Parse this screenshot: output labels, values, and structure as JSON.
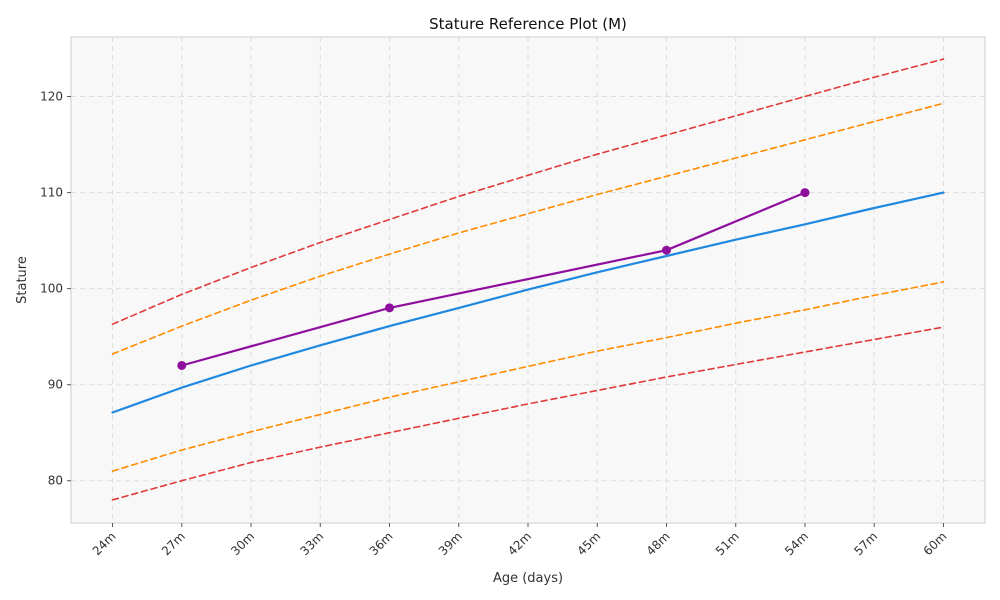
{
  "chart_data": {
    "type": "line",
    "title": "Stature Reference Plot (M)",
    "xlabel": "Age (days)",
    "ylabel": "Stature",
    "x_ticks": [
      24,
      27,
      30,
      33,
      36,
      39,
      42,
      45,
      48,
      51,
      54,
      57,
      60
    ],
    "x_tick_labels": [
      "24m",
      "27m",
      "30m",
      "33m",
      "36m",
      "39m",
      "42m",
      "45m",
      "48m",
      "51m",
      "54m",
      "57m",
      "60m"
    ],
    "y_ticks": [
      80,
      90,
      100,
      110,
      120
    ],
    "y_tick_labels": [
      "80",
      "90",
      "100",
      "110",
      "120"
    ],
    "xlim": [
      22.2,
      61.8
    ],
    "ylim": [
      75.6,
      126.2
    ],
    "grid": true,
    "background": "#f8f8f8",
    "series": [
      {
        "role": "reference-upper-outer",
        "style": "dashed",
        "color": "#e03a3a",
        "x": [
          24,
          27,
          30,
          33,
          36,
          39,
          42,
          45,
          48,
          51,
          54,
          57,
          60
        ],
        "y": [
          96.3,
          99.4,
          102.2,
          104.8,
          107.2,
          109.6,
          111.8,
          114.0,
          116.0,
          118.0,
          120.0,
          122.0,
          123.9
        ]
      },
      {
        "role": "reference-upper-inner",
        "style": "dashed",
        "color": "#ff8c00",
        "x": [
          24,
          27,
          30,
          33,
          36,
          39,
          42,
          45,
          48,
          51,
          54,
          57,
          60
        ],
        "y": [
          93.2,
          96.1,
          98.8,
          101.3,
          103.6,
          105.8,
          107.8,
          109.8,
          111.7,
          113.6,
          115.5,
          117.4,
          119.3
        ]
      },
      {
        "role": "median",
        "style": "solid",
        "color": "#1f88e0",
        "x": [
          24,
          27,
          30,
          33,
          36,
          39,
          42,
          45,
          48,
          51,
          54,
          57,
          60
        ],
        "y": [
          87.1,
          89.7,
          92.0,
          94.1,
          96.1,
          98.0,
          99.9,
          101.7,
          103.4,
          105.1,
          106.7,
          108.4,
          110.0
        ]
      },
      {
        "role": "reference-lower-inner",
        "style": "dashed",
        "color": "#ff8c00",
        "x": [
          24,
          27,
          30,
          33,
          36,
          39,
          42,
          45,
          48,
          51,
          54,
          57,
          60
        ],
        "y": [
          81.0,
          83.2,
          85.1,
          86.9,
          88.7,
          90.3,
          91.9,
          93.5,
          94.9,
          96.4,
          97.8,
          99.3,
          100.7
        ]
      },
      {
        "role": "reference-lower-outer",
        "style": "dashed",
        "color": "#e03a3a",
        "x": [
          24,
          27,
          30,
          33,
          36,
          39,
          42,
          45,
          48,
          51,
          54,
          57,
          60
        ],
        "y": [
          78.0,
          80.0,
          81.9,
          83.5,
          85.0,
          86.5,
          88.0,
          89.4,
          90.8,
          92.1,
          93.4,
          94.7,
          96.0
        ]
      },
      {
        "role": "measurements",
        "style": "solid-markers",
        "color": "#8e0f9e",
        "x": [
          27,
          36,
          48,
          54
        ],
        "y": [
          92,
          98,
          104,
          110
        ]
      }
    ]
  }
}
